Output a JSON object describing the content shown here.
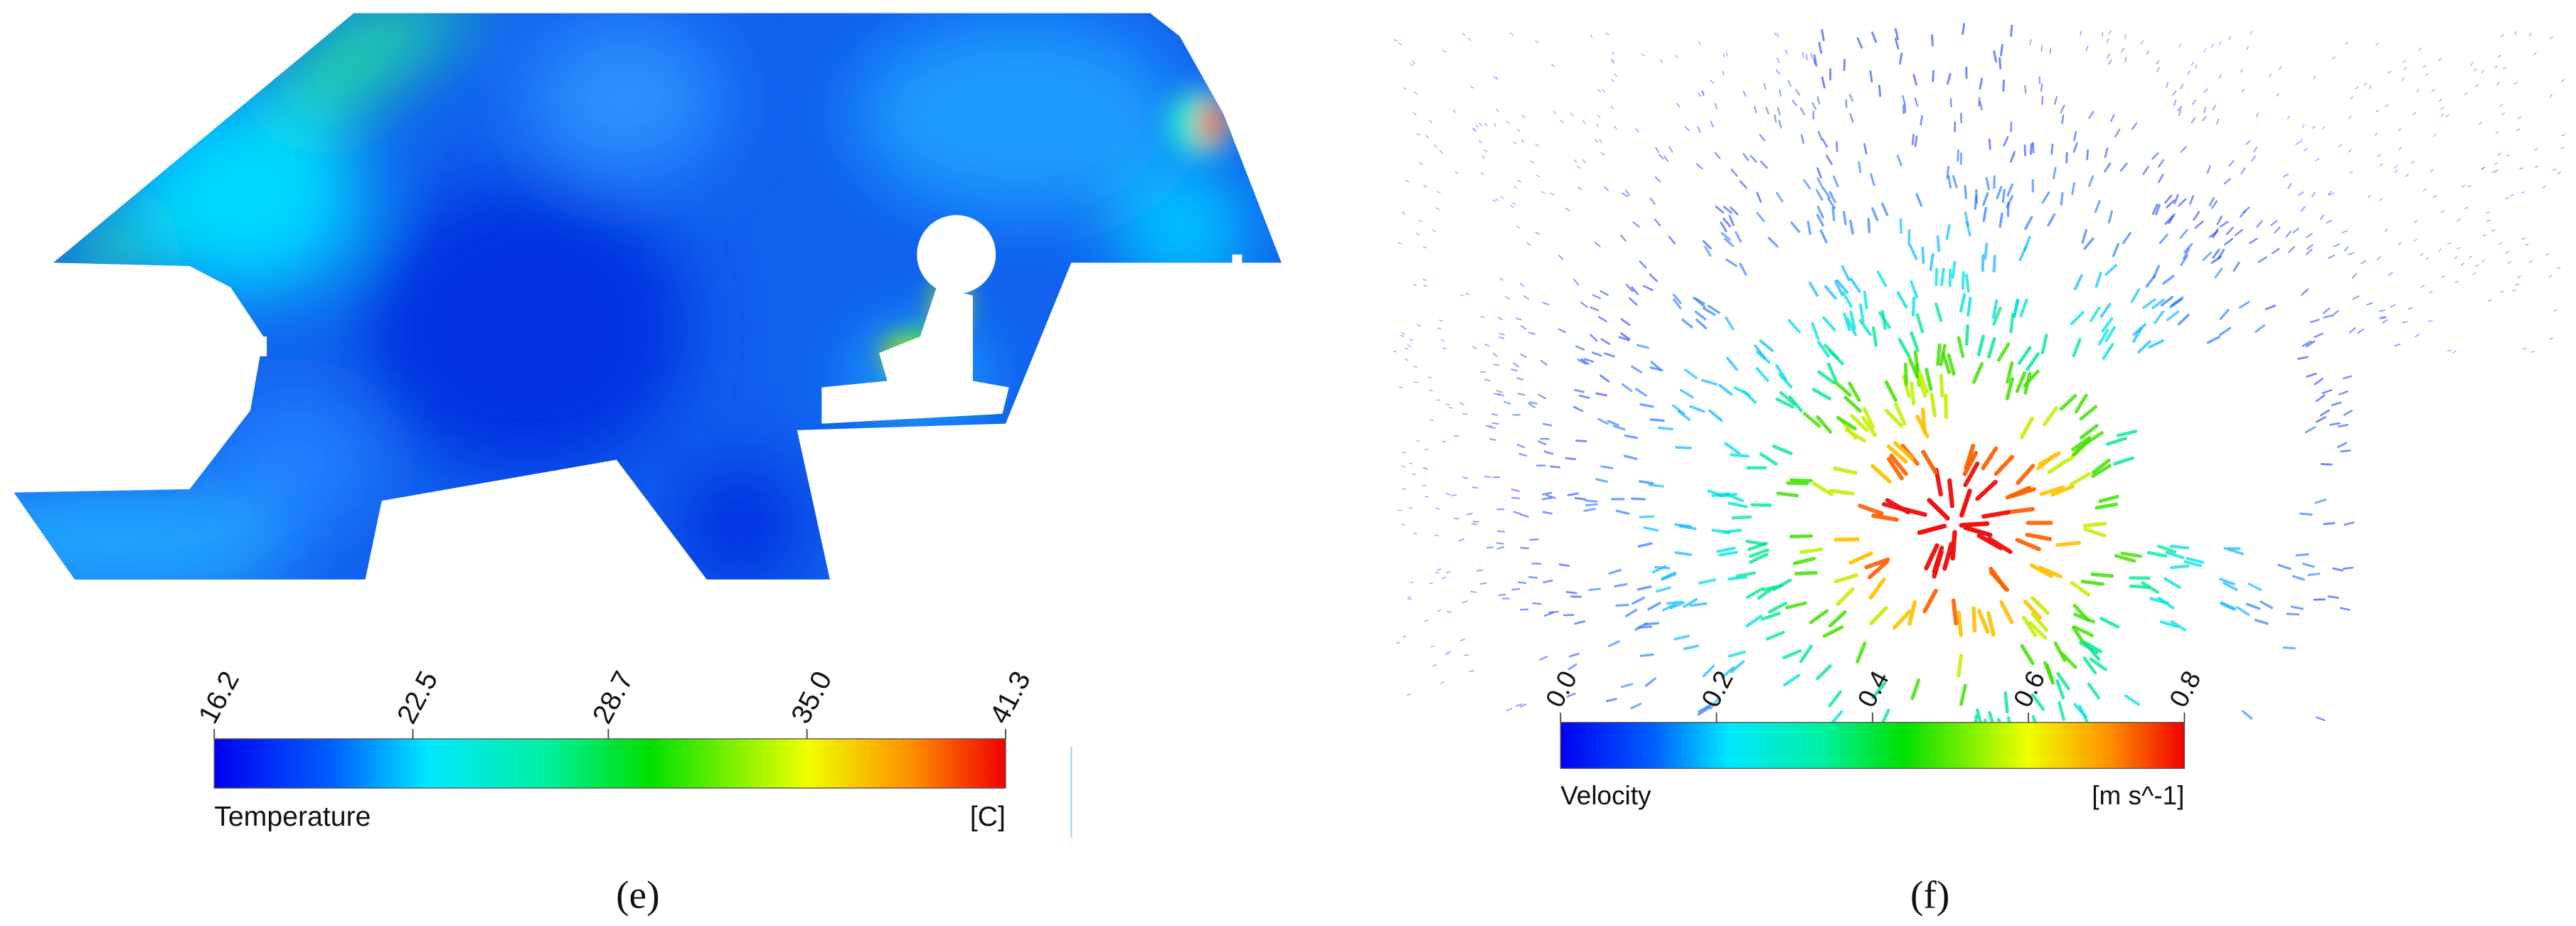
{
  "panels": [
    {
      "caption": "(e)",
      "colorbar": {
        "title": "Temperature",
        "unit": "[C]",
        "ticks": [
          16.2,
          22.5,
          28.7,
          {
            "value": 35,
            "label": "35.0"
          },
          41.3
        ]
      }
    },
    {
      "caption": "(f)",
      "colorbar": {
        "title": "Velocity",
        "unit": "[m s^-1]",
        "ticks": [
          {
            "value": 0,
            "label": "0.0"
          },
          0.2,
          0.4,
          0.6,
          0.8
        ]
      }
    }
  ]
}
